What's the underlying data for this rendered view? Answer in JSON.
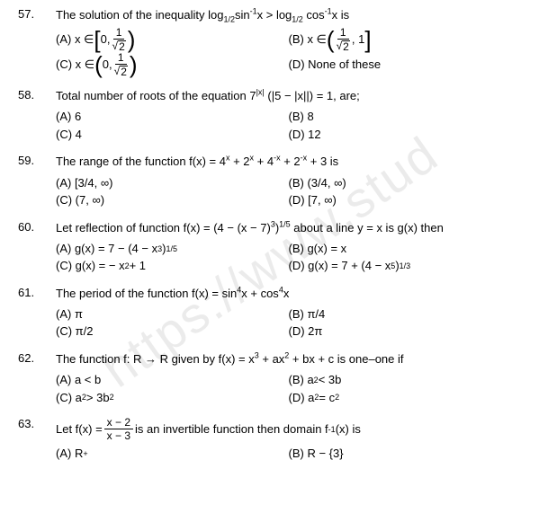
{
  "watermark": "https://www.stud",
  "questions": [
    {
      "num": "57.",
      "stem_pre": "The solution of the inequality  log",
      "stem_sub1": "1/2",
      "stem_mid1": "sin",
      "stem_sup1": "-1",
      "stem_mid2": "x > log",
      "stem_sub2": "1/2",
      "stem_mid3": " cos",
      "stem_sup2": "-1",
      "stem_end": "x  is",
      "optA_label": "(A) x ∈ ",
      "optA_delim_l": "[",
      "optA_a": "0, ",
      "optA_frac_n": "1",
      "optA_frac_d": "2",
      "optA_delim_r": ")",
      "optB_label": "(B) x ∈ ",
      "optB_delim_l": "(",
      "optB_frac_n": "1",
      "optB_frac_d": "2",
      "optB_a": ", 1",
      "optB_delim_r": "]",
      "optC_label": "(C)  x ∈ ",
      "optC_delim_l": "(",
      "optC_a": "0, ",
      "optC_frac_n": "1",
      "optC_frac_d": "2",
      "optC_delim_r": ")",
      "optD_label": "(D)  None  of these"
    },
    {
      "num": "58.",
      "stem": "Total number of roots of the equation 7|x| (|5 − |x||) = 1, are;",
      "A": "(A) 6",
      "B": "(B) 8",
      "C": "(C) 4",
      "D": "(D) 12"
    },
    {
      "num": "59.",
      "stem": "The range of the function f(x) = 4x + 2x + 4-x + 2-x + 3 is",
      "stem_html": true,
      "A": "(A)       [3/4, ∞)",
      "B": "(B)       (3/4, ∞)",
      "C": "(C)       (7, ∞)",
      "D": "(D)       [7, ∞)"
    },
    {
      "num": "60.",
      "stem": "Let reflection of function f(x) =  (4 − (x − 7)3)1/5 about a line  y = x is g(x) then",
      "A": "(A)  g(x) = 7 − (4 − x3)1/5",
      "B": "(B)  g(x) = x",
      "C": "(C)  g(x) = − x2 + 1",
      "D": "(D)  g(x) = 7 + (4 − x5)1/3"
    },
    {
      "num": "61.",
      "stem": "The period of the  function f(x) = sin4x + cos4x",
      "A": "(A)  π",
      "B": "(B) π/4",
      "C": "(C)  π/2",
      "D": "(D) 2π"
    },
    {
      "num": "62.",
      "stem": "The function  f: R → R given by f(x) = x3 + ax2 + bx + c is one–one if",
      "A": "(A)  a < b",
      "B": "(B)  a2 < 3b",
      "C": "(C)  a2 > 3b2",
      "D": "(D) a2 = c2"
    },
    {
      "num": "63.",
      "stem_pre": "Let  f(x) = ",
      "frac_n": "x − 2",
      "frac_d": "x − 3",
      "stem_post": " is an invertible function  then domain  f",
      "stem_sup": "-1",
      "stem_end": "(x) is",
      "A": "(A)  R+",
      "B": "(B) R − {3}"
    }
  ]
}
